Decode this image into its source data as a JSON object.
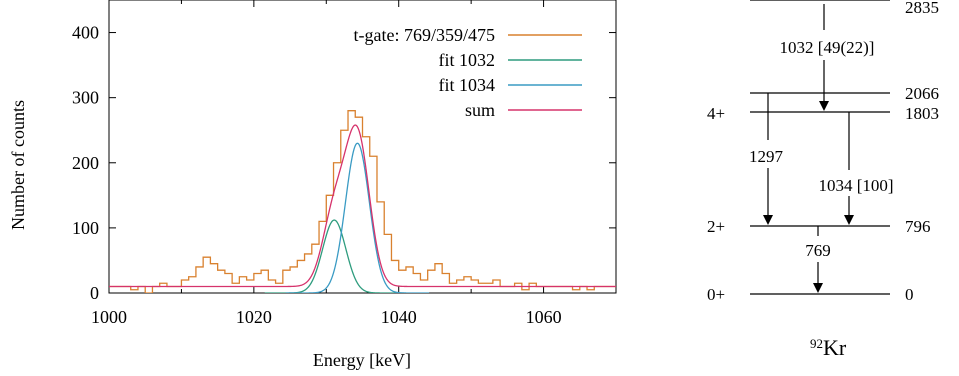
{
  "chart_data": [
    {
      "type": "line",
      "xlabel": "Energy [keV]",
      "ylabel": "Number of counts",
      "xlim": [
        1000,
        1070
      ],
      "ylim": [
        0,
        450
      ],
      "xticks": [
        1000,
        1020,
        1040,
        1060
      ],
      "yticks": [
        0,
        100,
        200,
        300,
        400
      ],
      "xtick_labels": [
        "1000",
        "1020",
        "1040",
        "1060"
      ],
      "ytick_labels": [
        "0",
        "100",
        "200",
        "300",
        "400"
      ],
      "grid": false,
      "legend_position": "top-right",
      "series": [
        {
          "name": "t-gate: 769/359/475",
          "color": "#d9812f",
          "style": "step",
          "x": [
            1000,
            1001,
            1002,
            1003,
            1004,
            1005,
            1006,
            1007,
            1008,
            1009,
            1010,
            1011,
            1012,
            1013,
            1014,
            1015,
            1016,
            1017,
            1018,
            1019,
            1020,
            1021,
            1022,
            1023,
            1024,
            1025,
            1026,
            1027,
            1028,
            1029,
            1030,
            1031,
            1032,
            1033,
            1034,
            1035,
            1036,
            1037,
            1038,
            1039,
            1040,
            1041,
            1042,
            1043,
            1044,
            1045,
            1046,
            1047,
            1048,
            1049,
            1050,
            1051,
            1052,
            1053,
            1054,
            1055,
            1056,
            1057,
            1058,
            1059,
            1060,
            1061,
            1062,
            1063,
            1064,
            1065,
            1066,
            1067,
            1068,
            1069
          ],
          "y": [
            10,
            10,
            10,
            5,
            10,
            0,
            10,
            15,
            10,
            10,
            20,
            25,
            40,
            55,
            45,
            35,
            30,
            15,
            25,
            20,
            30,
            35,
            20,
            15,
            35,
            40,
            50,
            60,
            75,
            110,
            150,
            200,
            250,
            280,
            270,
            240,
            210,
            140,
            90,
            50,
            35,
            40,
            30,
            20,
            35,
            45,
            30,
            15,
            20,
            25,
            20,
            15,
            15,
            20,
            10,
            10,
            15,
            5,
            15,
            10,
            10,
            10,
            10,
            10,
            5,
            10,
            5,
            10,
            10,
            10
          ]
        },
        {
          "name": "fit 1032",
          "color": "#2e9c7e",
          "style": "smooth",
          "mu": 1031.1,
          "sigma": 1.6,
          "amp": 112,
          "baseline": 0
        },
        {
          "name": "fit 1034",
          "color": "#3a9bc4",
          "style": "smooth",
          "mu": 1034.3,
          "sigma": 1.65,
          "amp": 230,
          "baseline": 0
        },
        {
          "name": "sum",
          "color": "#d6336c",
          "style": "smooth",
          "baseline": 10
        }
      ]
    },
    {
      "type": "diagram",
      "nucleus_mass": "92",
      "nucleus_symbol": "Kr",
      "levels": [
        {
          "energy": 2835,
          "energy_label": "2835",
          "spin": ""
        },
        {
          "energy": 2066,
          "energy_label": "2066",
          "spin": ""
        },
        {
          "energy": 1803,
          "energy_label": "1803",
          "spin": "4+"
        },
        {
          "energy": 796,
          "energy_label": "796",
          "spin": "2+"
        },
        {
          "energy": 0,
          "energy_label": "0",
          "spin": "0+"
        }
      ],
      "transitions": [
        {
          "label": "1032 [49(22)]",
          "from": 2835,
          "to": 1803
        },
        {
          "label": "1297",
          "from": 2066,
          "to": 796
        },
        {
          "label": "1034 [100]",
          "from": 1803,
          "to": 796
        },
        {
          "label": "769",
          "from": 796,
          "to": 0
        }
      ]
    }
  ]
}
